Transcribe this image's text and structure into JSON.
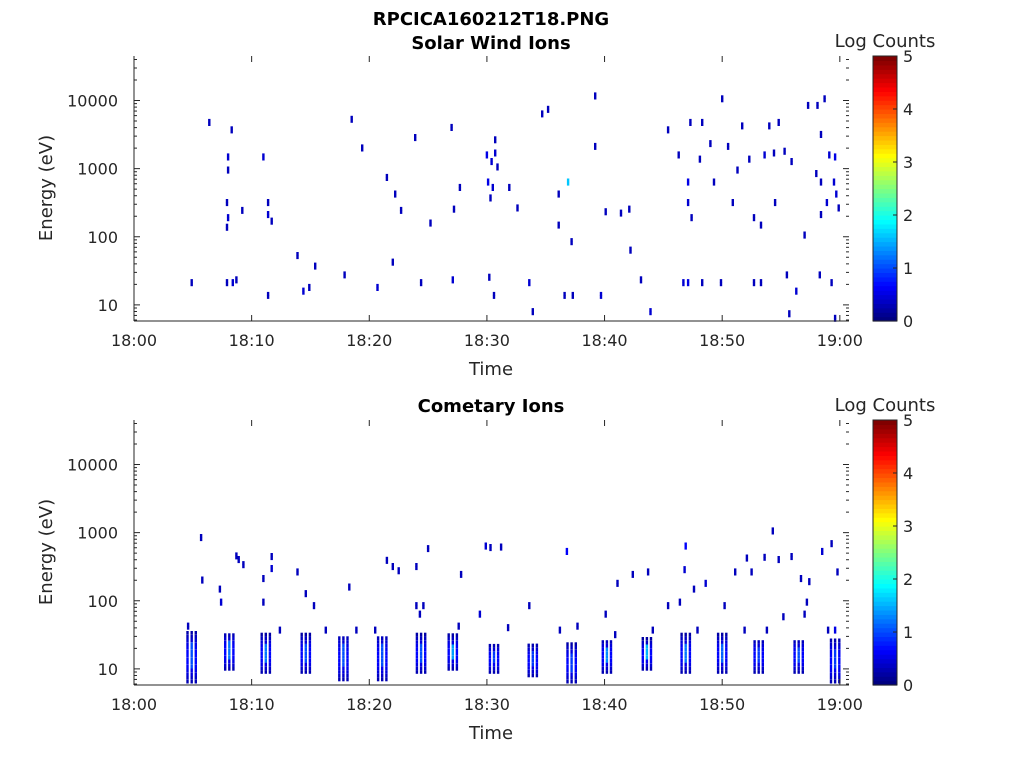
{
  "figure": {
    "title": "RPCICA160212T18.PNG"
  },
  "colors": {
    "axis": "#262626",
    "background": "#ffffff"
  },
  "chart_data": [
    {
      "type": "heatmap",
      "title": "Solar Wind Ions",
      "xlabel": "Time",
      "ylabel": "Energy (eV)",
      "yscale": "log",
      "xlim": [
        "18:00",
        "19:00"
      ],
      "ylim": [
        5.8,
        45000
      ],
      "xticks": [
        "18:00",
        "18:10",
        "18:20",
        "18:30",
        "18:40",
        "18:50",
        "19:00"
      ],
      "yticks": [
        "10",
        "100",
        "1000",
        "10000"
      ],
      "colorbar": {
        "label": "Log Counts",
        "range": [
          0,
          5
        ],
        "ticks": [
          "0",
          "1",
          "2",
          "3",
          "4",
          "5"
        ],
        "colormap": "jet"
      },
      "grid": false,
      "cells": [
        {
          "t": 4.8,
          "e": 20,
          "v": 0.3
        },
        {
          "t": 7.8,
          "e": 20,
          "v": 0.3
        },
        {
          "t": 8.3,
          "e": 20,
          "v": 0.4
        },
        {
          "t": 8.6,
          "e": 22,
          "v": 0.3
        },
        {
          "t": 11.3,
          "e": 13,
          "v": 0.3
        },
        {
          "t": 14.3,
          "e": 15,
          "v": 0.4
        },
        {
          "t": 14.8,
          "e": 17,
          "v": 0.3
        },
        {
          "t": 17.8,
          "e": 26,
          "v": 0.3
        },
        {
          "t": 20.6,
          "e": 17,
          "v": 0.4
        },
        {
          "t": 24.3,
          "e": 20,
          "v": 0.3
        },
        {
          "t": 27.0,
          "e": 22,
          "v": 0.4
        },
        {
          "t": 30.1,
          "e": 24,
          "v": 0.3
        },
        {
          "t": 30.5,
          "e": 13,
          "v": 0.3
        },
        {
          "t": 33.5,
          "e": 20,
          "v": 0.4
        },
        {
          "t": 33.8,
          "e": 7.5,
          "v": 0.3
        },
        {
          "t": 36.5,
          "e": 13,
          "v": 0.3
        },
        {
          "t": 37.2,
          "e": 13,
          "v": 0.3
        },
        {
          "t": 39.6,
          "e": 13,
          "v": 0.4
        },
        {
          "t": 43.0,
          "e": 22,
          "v": 0.3
        },
        {
          "t": 43.8,
          "e": 7.5,
          "v": 0.4
        },
        {
          "t": 46.6,
          "e": 20,
          "v": 0.4
        },
        {
          "t": 47.0,
          "e": 20,
          "v": 0.5
        },
        {
          "t": 48.2,
          "e": 20,
          "v": 0.3
        },
        {
          "t": 49.8,
          "e": 20,
          "v": 0.3
        },
        {
          "t": 52.6,
          "e": 20,
          "v": 0.3
        },
        {
          "t": 53.2,
          "e": 20,
          "v": 0.3
        },
        {
          "t": 55.4,
          "e": 26,
          "v": 0.3
        },
        {
          "t": 56.2,
          "e": 15,
          "v": 0.4
        },
        {
          "t": 59.2,
          "e": 20,
          "v": 0.3
        },
        {
          "t": 58.2,
          "e": 26,
          "v": 0.3
        },
        {
          "t": 7.9,
          "e": 1400,
          "v": 0.4
        },
        {
          "t": 7.9,
          "e": 900,
          "v": 0.3
        },
        {
          "t": 7.8,
          "e": 300,
          "v": 0.3
        },
        {
          "t": 7.9,
          "e": 180,
          "v": 0.4
        },
        {
          "t": 7.8,
          "e": 130,
          "v": 0.3
        },
        {
          "t": 10.9,
          "e": 1400,
          "v": 0.4
        },
        {
          "t": 11.3,
          "e": 300,
          "v": 0.3
        },
        {
          "t": 11.3,
          "e": 200,
          "v": 0.4
        },
        {
          "t": 11.6,
          "e": 160,
          "v": 0.3
        },
        {
          "t": 29.9,
          "e": 1500,
          "v": 0.5
        },
        {
          "t": 30.3,
          "e": 1200,
          "v": 0.4
        },
        {
          "t": 30.6,
          "e": 1600,
          "v": 0.4
        },
        {
          "t": 30.0,
          "e": 600,
          "v": 0.5
        },
        {
          "t": 30.4,
          "e": 500,
          "v": 0.4
        },
        {
          "t": 30.2,
          "e": 350,
          "v": 0.3
        },
        {
          "t": 30.8,
          "e": 1000,
          "v": 0.3
        },
        {
          "t": 31.8,
          "e": 500,
          "v": 0.3
        },
        {
          "t": 32.5,
          "e": 250,
          "v": 0.3
        },
        {
          "t": 36.8,
          "e": 600,
          "v": 1.6
        },
        {
          "t": 46.2,
          "e": 1500,
          "v": 0.3
        },
        {
          "t": 47.0,
          "e": 600,
          "v": 0.5
        },
        {
          "t": 47.0,
          "e": 300,
          "v": 0.4
        },
        {
          "t": 47.3,
          "e": 180,
          "v": 0.3
        },
        {
          "t": 48.0,
          "e": 1300,
          "v": 0.3
        },
        {
          "t": 52.2,
          "e": 1300,
          "v": 0.3
        },
        {
          "t": 53.5,
          "e": 1500,
          "v": 0.4
        },
        {
          "t": 59.0,
          "e": 1500,
          "v": 0.4
        },
        {
          "t": 59.5,
          "e": 1400,
          "v": 0.5
        },
        {
          "t": 59.4,
          "e": 600,
          "v": 0.4
        },
        {
          "t": 59.6,
          "e": 400,
          "v": 0.4
        },
        {
          "t": 59.8,
          "e": 250,
          "v": 0.3
        },
        {
          "t": 58.3,
          "e": 600,
          "v": 0.3
        },
        {
          "t": 58.8,
          "e": 300,
          "v": 0.4
        },
        {
          "t": 58.3,
          "e": 200,
          "v": 0.3
        },
        {
          "t": 6.3,
          "e": 4500,
          "v": 0.3
        },
        {
          "t": 8.2,
          "e": 3500,
          "v": 0.3
        },
        {
          "t": 9.1,
          "e": 230,
          "v": 0.3
        },
        {
          "t": 13.8,
          "e": 50,
          "v": 0.3
        },
        {
          "t": 15.3,
          "e": 35,
          "v": 0.3
        },
        {
          "t": 18.4,
          "e": 5000,
          "v": 0.3
        },
        {
          "t": 19.3,
          "e": 1900,
          "v": 0.3
        },
        {
          "t": 21.4,
          "e": 700,
          "v": 0.3
        },
        {
          "t": 21.9,
          "e": 40,
          "v": 0.3
        },
        {
          "t": 22.1,
          "e": 400,
          "v": 0.3
        },
        {
          "t": 22.6,
          "e": 230,
          "v": 0.3
        },
        {
          "t": 23.8,
          "e": 2700,
          "v": 0.3
        },
        {
          "t": 25.1,
          "e": 150,
          "v": 0.3
        },
        {
          "t": 26.9,
          "e": 3800,
          "v": 0.3
        },
        {
          "t": 27.1,
          "e": 240,
          "v": 0.3
        },
        {
          "t": 27.6,
          "e": 500,
          "v": 0.3
        },
        {
          "t": 30.6,
          "e": 2500,
          "v": 0.3
        },
        {
          "t": 34.6,
          "e": 6000,
          "v": 0.3
        },
        {
          "t": 35.1,
          "e": 7000,
          "v": 0.3
        },
        {
          "t": 36.0,
          "e": 400,
          "v": 0.3
        },
        {
          "t": 36.0,
          "e": 140,
          "v": 0.3
        },
        {
          "t": 37.1,
          "e": 80,
          "v": 0.3
        },
        {
          "t": 39.1,
          "e": 11000,
          "v": 0.3
        },
        {
          "t": 39.1,
          "e": 2000,
          "v": 0.3
        },
        {
          "t": 40.0,
          "e": 220,
          "v": 0.3
        },
        {
          "t": 41.3,
          "e": 210,
          "v": 0.3
        },
        {
          "t": 42.0,
          "e": 240,
          "v": 0.3
        },
        {
          "t": 42.1,
          "e": 60,
          "v": 0.3
        },
        {
          "t": 45.3,
          "e": 3500,
          "v": 0.3
        },
        {
          "t": 47.2,
          "e": 4500,
          "v": 0.3
        },
        {
          "t": 48.2,
          "e": 4500,
          "v": 0.3
        },
        {
          "t": 48.9,
          "e": 2200,
          "v": 0.3
        },
        {
          "t": 49.2,
          "e": 600,
          "v": 0.3
        },
        {
          "t": 49.9,
          "e": 10000,
          "v": 0.3
        },
        {
          "t": 50.4,
          "e": 2000,
          "v": 0.3
        },
        {
          "t": 50.8,
          "e": 300,
          "v": 0.3
        },
        {
          "t": 51.2,
          "e": 900,
          "v": 0.3
        },
        {
          "t": 51.6,
          "e": 4000,
          "v": 0.3
        },
        {
          "t": 52.6,
          "e": 180,
          "v": 0.3
        },
        {
          "t": 53.2,
          "e": 140,
          "v": 0.3
        },
        {
          "t": 53.9,
          "e": 4000,
          "v": 0.3
        },
        {
          "t": 54.4,
          "e": 300,
          "v": 0.3
        },
        {
          "t": 55.2,
          "e": 1700,
          "v": 0.3
        },
        {
          "t": 55.8,
          "e": 1200,
          "v": 0.3
        },
        {
          "t": 56.9,
          "e": 100,
          "v": 0.3
        },
        {
          "t": 57.2,
          "e": 8000,
          "v": 0.3
        },
        {
          "t": 58.0,
          "e": 8000,
          "v": 0.3
        },
        {
          "t": 58.3,
          "e": 3000,
          "v": 0.3
        },
        {
          "t": 58.6,
          "e": 10000,
          "v": 0.3
        },
        {
          "t": 54.3,
          "e": 1600,
          "v": 0.3
        },
        {
          "t": 54.7,
          "e": 4500,
          "v": 0.3
        },
        {
          "t": 57.9,
          "e": 800,
          "v": 0.3
        },
        {
          "t": 55.6,
          "e": 7,
          "v": 0.3
        },
        {
          "t": 59.5,
          "e": 6,
          "v": 0.3
        }
      ]
    },
    {
      "type": "heatmap",
      "title": "Cometary Ions",
      "xlabel": "Time",
      "ylabel": "Energy (eV)",
      "yscale": "log",
      "xlim": [
        "18:00",
        "19:00"
      ],
      "ylim": [
        5.8,
        45000
      ],
      "xticks": [
        "18:00",
        "18:10",
        "18:20",
        "18:30",
        "18:40",
        "18:50",
        "19:00"
      ],
      "yticks": [
        "10",
        "100",
        "1000",
        "10000"
      ],
      "colorbar": {
        "label": "Log Counts",
        "range": [
          0,
          5
        ],
        "ticks": [
          "0",
          "1",
          "2",
          "3",
          "4",
          "5"
        ],
        "colormap": "jet"
      },
      "grid": false,
      "bursts": [
        {
          "t": 4.8,
          "lo": 6.5,
          "hi": 32,
          "peak": 1.0
        },
        {
          "t": 8.0,
          "lo": 10,
          "hi": 32,
          "peak": 1.2
        },
        {
          "t": 11.1,
          "lo": 9,
          "hi": 30,
          "peak": 1.2
        },
        {
          "t": 14.5,
          "lo": 9,
          "hi": 30,
          "peak": 1.0
        },
        {
          "t": 17.7,
          "lo": 7,
          "hi": 30,
          "peak": 1.0
        },
        {
          "t": 21.0,
          "lo": 7,
          "hi": 30,
          "peak": 1.0
        },
        {
          "t": 24.3,
          "lo": 9,
          "hi": 30,
          "peak": 1.0
        },
        {
          "t": 27.0,
          "lo": 10,
          "hi": 30,
          "peak": 1.4
        },
        {
          "t": 30.5,
          "lo": 9,
          "hi": 22,
          "peak": 0.9
        },
        {
          "t": 33.8,
          "lo": 8,
          "hi": 22,
          "peak": 0.9
        },
        {
          "t": 37.1,
          "lo": 6.5,
          "hi": 22,
          "peak": 0.9
        },
        {
          "t": 40.1,
          "lo": 9,
          "hi": 26,
          "peak": 1.3
        },
        {
          "t": 43.5,
          "lo": 10,
          "hi": 26,
          "peak": 1.5
        },
        {
          "t": 46.8,
          "lo": 9,
          "hi": 30,
          "peak": 1.2
        },
        {
          "t": 49.9,
          "lo": 9,
          "hi": 30,
          "peak": 1.1
        },
        {
          "t": 53.0,
          "lo": 9,
          "hi": 26,
          "peak": 0.9
        },
        {
          "t": 56.4,
          "lo": 9,
          "hi": 26,
          "peak": 1.0
        },
        {
          "t": 59.5,
          "lo": 6.5,
          "hi": 26,
          "peak": 0.9
        }
      ],
      "cells": [
        {
          "t": 5.6,
          "e": 800,
          "v": 0.3
        },
        {
          "t": 5.7,
          "e": 190,
          "v": 0.3
        },
        {
          "t": 7.2,
          "e": 140,
          "v": 0.3
        },
        {
          "t": 7.3,
          "e": 90,
          "v": 0.4
        },
        {
          "t": 8.6,
          "e": 430,
          "v": 0.3
        },
        {
          "t": 9.2,
          "e": 320,
          "v": 0.3
        },
        {
          "t": 8.8,
          "e": 380,
          "v": 0.3
        },
        {
          "t": 10.9,
          "e": 200,
          "v": 0.3
        },
        {
          "t": 10.9,
          "e": 90,
          "v": 0.3
        },
        {
          "t": 11.6,
          "e": 420,
          "v": 0.3
        },
        {
          "t": 11.6,
          "e": 280,
          "v": 0.4
        },
        {
          "t": 13.8,
          "e": 250,
          "v": 0.3
        },
        {
          "t": 14.5,
          "e": 120,
          "v": 0.3
        },
        {
          "t": 15.2,
          "e": 80,
          "v": 0.3
        },
        {
          "t": 18.2,
          "e": 150,
          "v": 0.3
        },
        {
          "t": 21.4,
          "e": 370,
          "v": 0.3
        },
        {
          "t": 21.9,
          "e": 300,
          "v": 0.3
        },
        {
          "t": 22.4,
          "e": 260,
          "v": 0.3
        },
        {
          "t": 23.9,
          "e": 300,
          "v": 0.3
        },
        {
          "t": 24.5,
          "e": 80,
          "v": 0.3
        },
        {
          "t": 24.9,
          "e": 550,
          "v": 0.3
        },
        {
          "t": 27.7,
          "e": 230,
          "v": 0.3
        },
        {
          "t": 29.8,
          "e": 600,
          "v": 0.4
        },
        {
          "t": 30.2,
          "e": 570,
          "v": 0.3
        },
        {
          "t": 31.1,
          "e": 580,
          "v": 0.3
        },
        {
          "t": 36.7,
          "e": 500,
          "v": 0.6
        },
        {
          "t": 40.0,
          "e": 60,
          "v": 0.3
        },
        {
          "t": 41.0,
          "e": 170,
          "v": 0.3
        },
        {
          "t": 42.3,
          "e": 230,
          "v": 0.3
        },
        {
          "t": 43.6,
          "e": 250,
          "v": 0.3
        },
        {
          "t": 46.8,
          "e": 600,
          "v": 0.6
        },
        {
          "t": 46.7,
          "e": 270,
          "v": 0.4
        },
        {
          "t": 47.5,
          "e": 140,
          "v": 0.3
        },
        {
          "t": 48.5,
          "e": 170,
          "v": 0.4
        },
        {
          "t": 51.0,
          "e": 250,
          "v": 0.3
        },
        {
          "t": 52.0,
          "e": 400,
          "v": 0.3
        },
        {
          "t": 53.5,
          "e": 410,
          "v": 0.3
        },
        {
          "t": 54.2,
          "e": 1000,
          "v": 0.3
        },
        {
          "t": 54.7,
          "e": 380,
          "v": 0.3
        },
        {
          "t": 55.8,
          "e": 420,
          "v": 0.3
        },
        {
          "t": 56.6,
          "e": 200,
          "v": 0.3
        },
        {
          "t": 56.9,
          "e": 60,
          "v": 0.3
        },
        {
          "t": 57.3,
          "e": 180,
          "v": 0.3
        },
        {
          "t": 58.4,
          "e": 500,
          "v": 0.4
        },
        {
          "t": 59.2,
          "e": 650,
          "v": 0.3
        },
        {
          "t": 59.7,
          "e": 250,
          "v": 0.3
        },
        {
          "t": 59.5,
          "e": 35,
          "v": 0.5
        },
        {
          "t": 52.4,
          "e": 250,
          "v": 0.3
        },
        {
          "t": 46.3,
          "e": 90,
          "v": 0.3
        },
        {
          "t": 50.1,
          "e": 80,
          "v": 0.3
        },
        {
          "t": 55.1,
          "e": 55,
          "v": 0.3
        },
        {
          "t": 57.1,
          "e": 90,
          "v": 0.3
        },
        {
          "t": 33.5,
          "e": 80,
          "v": 0.3
        },
        {
          "t": 36.1,
          "e": 35,
          "v": 0.3
        },
        {
          "t": 37.6,
          "e": 40,
          "v": 0.3
        },
        {
          "t": 40.8,
          "e": 30,
          "v": 0.3
        },
        {
          "t": 44.0,
          "e": 35,
          "v": 0.3
        },
        {
          "t": 45.3,
          "e": 80,
          "v": 0.3
        },
        {
          "t": 47.8,
          "e": 35,
          "v": 0.3
        },
        {
          "t": 51.8,
          "e": 35,
          "v": 0.3
        },
        {
          "t": 53.7,
          "e": 35,
          "v": 0.3
        },
        {
          "t": 58.9,
          "e": 35,
          "v": 0.3
        },
        {
          "t": 27.5,
          "e": 40,
          "v": 0.3
        },
        {
          "t": 29.3,
          "e": 60,
          "v": 0.4
        },
        {
          "t": 31.7,
          "e": 38,
          "v": 0.3
        },
        {
          "t": 12.3,
          "e": 35,
          "v": 0.3
        },
        {
          "t": 16.2,
          "e": 35,
          "v": 0.3
        },
        {
          "t": 18.8,
          "e": 35,
          "v": 0.3
        },
        {
          "t": 20.4,
          "e": 35,
          "v": 0.3
        },
        {
          "t": 23.9,
          "e": 80,
          "v": 0.3
        },
        {
          "t": 24.2,
          "e": 60,
          "v": 0.3
        },
        {
          "t": 4.5,
          "e": 40,
          "v": 0.3
        }
      ]
    }
  ]
}
